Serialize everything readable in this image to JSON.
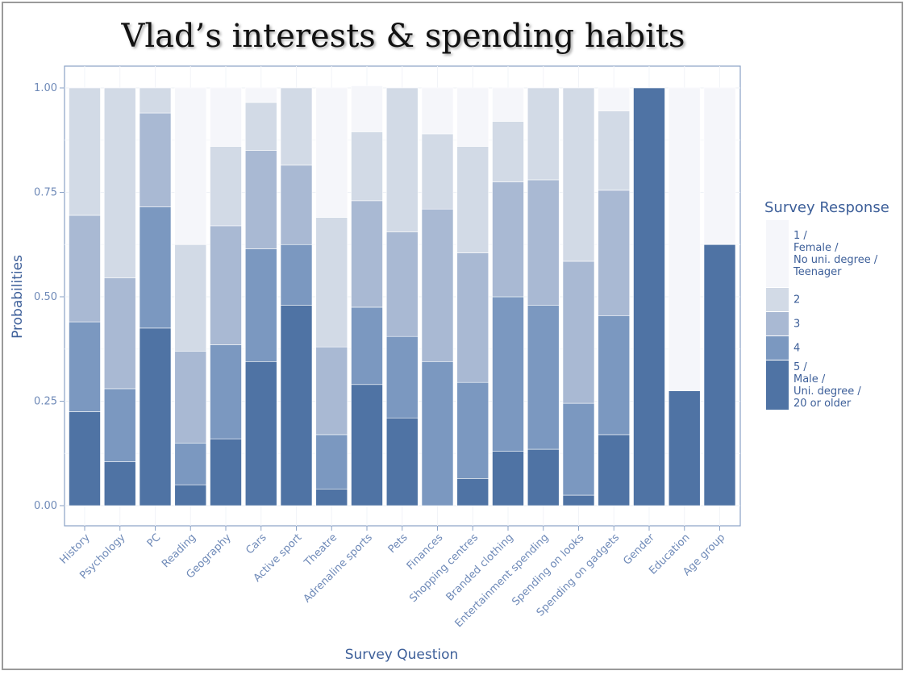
{
  "chart_data": {
    "type": "bar",
    "stacked": true,
    "title": "Vlad’s interests & spending habits",
    "xlabel": "Survey Question",
    "ylabel": "Probabilities",
    "ylim": [
      0,
      1
    ],
    "yticks": [
      "0.00",
      "0.25",
      "0.50",
      "0.75",
      "1.00"
    ],
    "categories": [
      "History",
      "Psychology",
      "PC",
      "Reading",
      "Geography",
      "Cars",
      "Active sport",
      "Theatre",
      "Adrenaline sports",
      "Pets",
      "Finances",
      "Shopping centres",
      "Branded clothing",
      "Entertainment spending",
      "Spending on looks",
      "Spending on gadgets",
      "Gender",
      "Education",
      "Age group"
    ],
    "legend_title": "Survey Response",
    "series": [
      {
        "name": "1 / Female / No uni. degree / Teenager",
        "legend_lines": [
          "1 /",
          "Female /",
          "No uni. degree /",
          "Teenager"
        ],
        "color": "#f5f6fa",
        "values": [
          0,
          0,
          0,
          0.375,
          0.14,
          0.035,
          0,
          0.31,
          0.11,
          0,
          0.11,
          0.14,
          0.08,
          0,
          0,
          0.055,
          0,
          0.725,
          0.375
        ]
      },
      {
        "name": "2",
        "legend_lines": [
          "2"
        ],
        "color": "#d2dae6",
        "values": [
          0.305,
          0.455,
          0.06,
          0.255,
          0.19,
          0.115,
          0.185,
          0.31,
          0.165,
          0.345,
          0.18,
          0.255,
          0.145,
          0.22,
          0.415,
          0.19,
          0,
          0,
          0
        ]
      },
      {
        "name": "3",
        "legend_lines": [
          "3"
        ],
        "color": "#a9b9d3",
        "values": [
          0.255,
          0.265,
          0.225,
          0.22,
          0.285,
          0.235,
          0.19,
          0.21,
          0.255,
          0.25,
          0.365,
          0.31,
          0.275,
          0.3,
          0.34,
          0.3,
          0,
          0,
          0
        ]
      },
      {
        "name": "4",
        "legend_lines": [
          "4"
        ],
        "color": "#7b98c0",
        "values": [
          0.215,
          0.175,
          0.29,
          0.1,
          0.225,
          0.27,
          0.145,
          0.13,
          0.185,
          0.195,
          0.345,
          0.23,
          0.37,
          0.345,
          0.22,
          0.285,
          0,
          0,
          0
        ]
      },
      {
        "name": "5 / Male / Uni. degree / 20 or older",
        "legend_lines": [
          "5 /",
          "Male /",
          "Uni. degree /",
          "20 or older"
        ],
        "color": "#4f73a4",
        "values": [
          0.225,
          0.105,
          0.425,
          0.05,
          0.16,
          0.345,
          0.48,
          0.04,
          0.29,
          0.21,
          0,
          0.065,
          0.13,
          0.135,
          0.025,
          0.17,
          1.0,
          0.275,
          0.625
        ]
      }
    ]
  }
}
